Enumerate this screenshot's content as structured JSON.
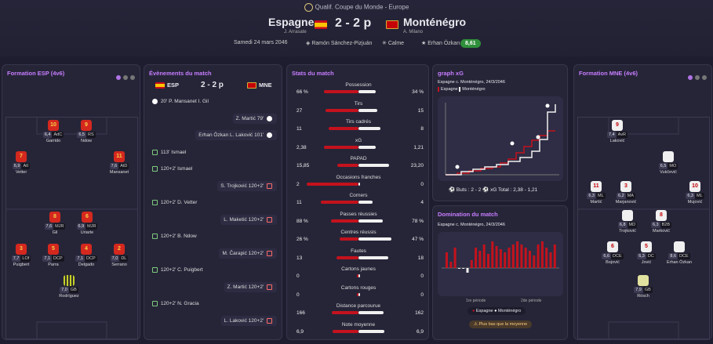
{
  "header": {
    "competition": "Qualif. Coupe du Monde - Europe",
    "home": {
      "name": "Espagne",
      "coach": "J. Arrasate"
    },
    "away": {
      "name": "Monténégro",
      "coach": "A. Milano"
    },
    "score": "2 - 2 p",
    "date": "Samedi 24 mars 2046",
    "stadium": "Ramón Sánchez-Pizjuán",
    "weather": "Calme",
    "motm": "Erhan Özkan",
    "motm_rating": "8,61"
  },
  "formation_esp": {
    "title": "Formation ESP (4v6)",
    "players": [
      {
        "num": "10",
        "rating": "6,4",
        "pos": "AdC",
        "name": "Garrido"
      },
      {
        "num": "9",
        "rating": "6,5",
        "pos": "RS",
        "name": "Ndow"
      },
      {
        "num": "7",
        "rating": "6,9",
        "pos": "AtI",
        "name": "Vetter"
      },
      {
        "num": "11",
        "rating": "7,6",
        "pos": "AtD",
        "name": "Mansanet"
      },
      {
        "num": "8",
        "rating": "7,6",
        "pos": "MJR",
        "name": "Gil"
      },
      {
        "num": "6",
        "rating": "6,9",
        "pos": "MJR",
        "name": "Uriarte"
      },
      {
        "num": "3",
        "rating": "7,7",
        "pos": "LOf",
        "name": "Puigbert"
      },
      {
        "num": "5",
        "rating": "7,1",
        "pos": "DCP",
        "name": "Parra"
      },
      {
        "num": "4",
        "rating": "7,1",
        "pos": "DCP",
        "name": "Delgado"
      },
      {
        "num": "2",
        "rating": "7,0",
        "pos": "DL",
        "name": "Serrano"
      },
      {
        "num": "",
        "rating": "7,0",
        "pos": "GB",
        "name": "Rodríguez"
      }
    ]
  },
  "events": {
    "title": "Évènements du match",
    "home": "ESP",
    "away": "MNE",
    "score": "2 - 2 p",
    "items": [
      {
        "side": "l",
        "icon": "ball-icon",
        "text": "20' P. Mansanet I. Gil"
      },
      {
        "side": "r",
        "icon": "ball-icon",
        "text": "Z. Martić 79'"
      },
      {
        "side": "r",
        "icon": "ball-icon",
        "text": "Erhan Özkan L. Laković 101'"
      },
      {
        "side": "l",
        "icon": "substitution-icon",
        "text": "113' Ismael"
      },
      {
        "side": "l",
        "icon": "substitution-icon",
        "text": "120+2' Ismael"
      },
      {
        "side": "r",
        "icon": "substitution-icon",
        "text": "S. Trojković 120+2'"
      },
      {
        "side": "l",
        "icon": "substitution-icon",
        "text": "120+2' D. Vetter"
      },
      {
        "side": "r",
        "icon": "substitution-icon",
        "text": "L. Maketić 120+2'"
      },
      {
        "side": "l",
        "icon": "substitution-icon",
        "text": "120+2' B. Ndow"
      },
      {
        "side": "r",
        "icon": "substitution-icon",
        "text": "M. Čarapić 120+2'"
      },
      {
        "side": "l",
        "icon": "substitution-icon",
        "text": "120+2' C. Puigbert"
      },
      {
        "side": "r",
        "icon": "substitution-icon",
        "text": "Z. Martić 120+2'"
      },
      {
        "side": "l",
        "icon": "substitution-icon",
        "text": "120+2' N. Gracia"
      },
      {
        "side": "r",
        "icon": "substitution-icon",
        "text": "L. Laković 120+2'"
      }
    ]
  },
  "stats": {
    "title": "Stats du match",
    "rows": [
      {
        "label": "Possession",
        "l": "66 %",
        "r": "34 %",
        "lf": 0.66,
        "rf": 0.34
      },
      {
        "label": "Tirs",
        "l": "27",
        "r": "15",
        "lf": 0.64,
        "rf": 0.36
      },
      {
        "label": "Tirs cadrés",
        "l": "11",
        "r": "8",
        "lf": 0.58,
        "rf": 0.42
      },
      {
        "label": "xG",
        "l": "2,38",
        "r": "1,21",
        "lf": 0.66,
        "rf": 0.34
      },
      {
        "label": "PAPAD",
        "l": "15,85",
        "r": "23,20",
        "lf": 0.41,
        "rf": 0.59
      },
      {
        "label": "Occasions franches",
        "l": "2",
        "r": "0",
        "lf": 1.0,
        "rf": 0.0
      },
      {
        "label": "Corners",
        "l": "11",
        "r": "4",
        "lf": 0.73,
        "rf": 0.27
      },
      {
        "label": "Passes réussies",
        "l": "88 %",
        "r": "78 %",
        "lf": 0.53,
        "rf": 0.47
      },
      {
        "label": "Centres réussis",
        "l": "26 %",
        "r": "47 %",
        "lf": 0.36,
        "rf": 0.64
      },
      {
        "label": "Fautes",
        "l": "13",
        "r": "18",
        "lf": 0.42,
        "rf": 0.58
      },
      {
        "label": "Cartons jaunes",
        "l": "0",
        "r": "0",
        "lf": 0,
        "rf": 0
      },
      {
        "label": "Cartons rouges",
        "l": "0",
        "r": "0",
        "lf": 0,
        "rf": 0
      },
      {
        "label": "Distance parcourue",
        "l": "166",
        "r": "162",
        "lf": 0.51,
        "rf": 0.49
      },
      {
        "label": "Note moyenne",
        "l": "6,9",
        "r": "6,9",
        "lf": 0.5,
        "rf": 0.5
      }
    ]
  },
  "xg": {
    "title": "graph xG",
    "subtitle": "Espagne c. Monténégro, 24/3/2046",
    "legend_home": "Espagne",
    "legend_away": "Monténégro",
    "buts": "Buts : 2 - 2",
    "total": "xG Total : 2,38 - 1,21"
  },
  "domination": {
    "title": "Domination du match",
    "subtitle": "Espagne c. Monténégro, 24/3/2046",
    "p1": "1re période",
    "p2": "2de période",
    "legend_home": "Espagne",
    "legend_away": "Monténégro",
    "warning": "Plus bas que la moyenne"
  },
  "formation_mne": {
    "title": "Formation MNE (4v6)",
    "players": [
      {
        "num": "9",
        "rating": "7,4",
        "pos": "AvR",
        "name": "Laković"
      },
      {
        "num": "",
        "rating": "6,5",
        "pos": "MO",
        "name": "Vukčević"
      },
      {
        "num": "11",
        "rating": "6,3",
        "pos": "ML",
        "name": "Martić"
      },
      {
        "num": "3",
        "rating": "6,2",
        "pos": "MA",
        "name": "Marjanović"
      },
      {
        "num": "10",
        "rating": "6,3",
        "pos": "ML",
        "name": "Mujović"
      },
      {
        "num": "",
        "rating": "6,8",
        "pos": "MD",
        "name": "Trojković"
      },
      {
        "num": "8",
        "rating": "6,3",
        "pos": "B2B",
        "name": "Marković"
      },
      {
        "num": "6",
        "rating": "6,6",
        "pos": "DCE",
        "name": "Bojović"
      },
      {
        "num": "5",
        "rating": "6,3",
        "pos": "DC",
        "name": "Jović"
      },
      {
        "num": "",
        "rating": "8,6",
        "pos": "DCE",
        "name": "Erhan Özkan"
      },
      {
        "num": "",
        "rating": "7,9",
        "pos": "GB",
        "name": "Rösch"
      }
    ]
  },
  "colors": {
    "home": "#c4121d",
    "away": "#f0f0f0",
    "accent": "#c77dff"
  }
}
